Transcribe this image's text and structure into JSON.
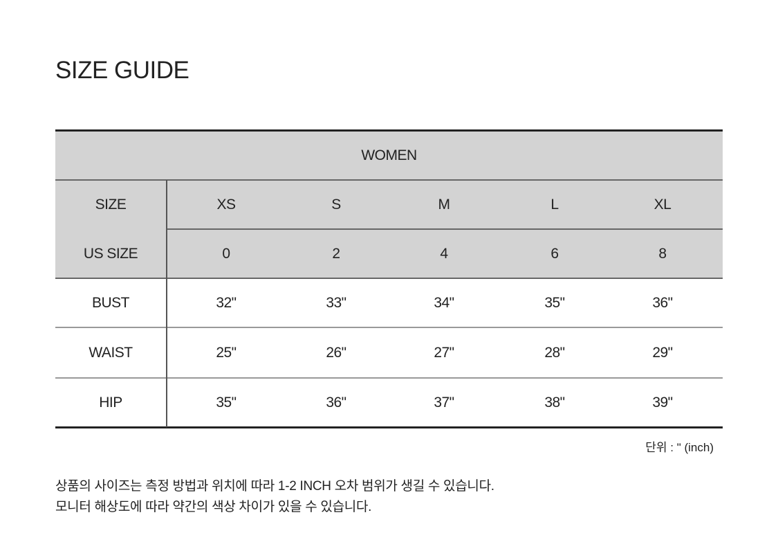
{
  "title": "SIZE GUIDE",
  "table": {
    "section": "WOMEN",
    "size_label": "SIZE",
    "us_size_label": "US SIZE",
    "sizes": [
      "XS",
      "S",
      "M",
      "L",
      "XL"
    ],
    "us_sizes": [
      "0",
      "2",
      "4",
      "6",
      "8"
    ],
    "rows": [
      {
        "label": "BUST",
        "values": [
          "32\"",
          "33\"",
          "34\"",
          "35\"",
          "36\""
        ]
      },
      {
        "label": "WAIST",
        "values": [
          "25\"",
          "26\"",
          "27\"",
          "28\"",
          "29\""
        ]
      },
      {
        "label": "HIP",
        "values": [
          "35\"",
          "36\"",
          "37\"",
          "38\"",
          "39\""
        ]
      }
    ]
  },
  "unit_note": "단위 : \" (inch)",
  "disclaimer": [
    "상품의 사이즈는 측정 방법과 위치에 따라 1-2 INCH 오차 범위가 생길 수 있습니다.",
    "모니터 해상도에 따라 약간의 색상 차이가 있을 수 있습니다."
  ],
  "colors": {
    "header_bg": "#d3d3d3",
    "border": "#222222"
  }
}
